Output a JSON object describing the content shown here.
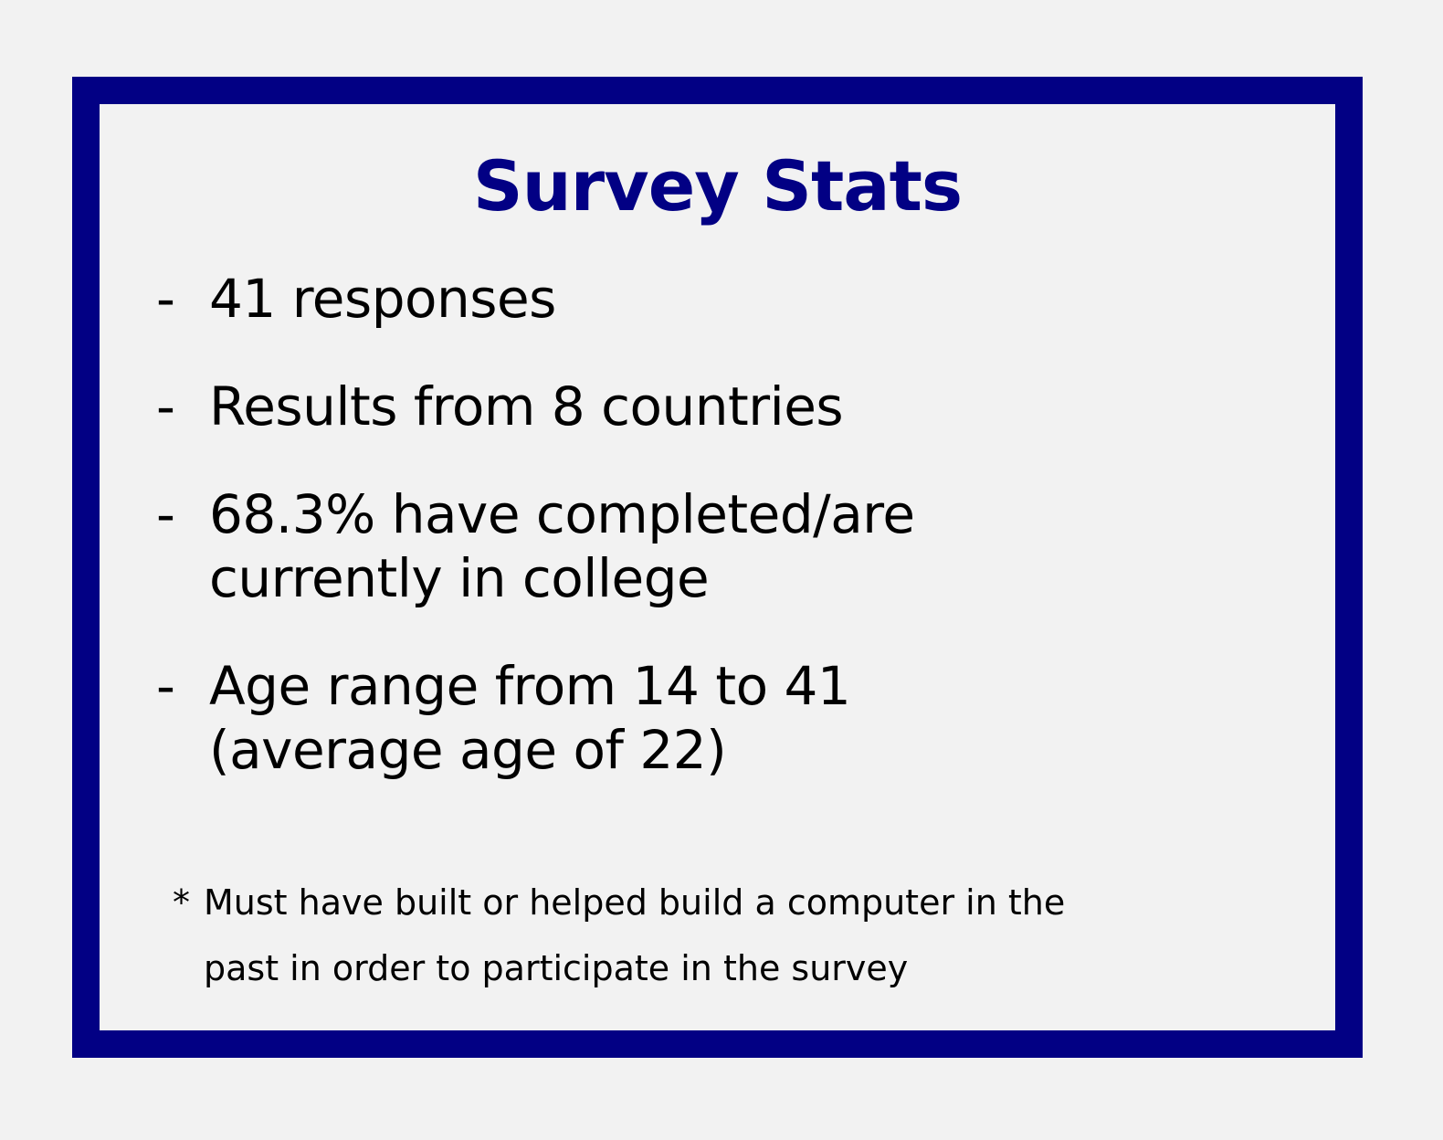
{
  "colors": {
    "background": "#f2f2f2",
    "frame_border": "#020084",
    "title": "#020084",
    "text": "#000000"
  },
  "title": "Survey Stats",
  "bullet_marker": "-",
  "bullets": [
    {
      "lines": [
        "41 responses"
      ]
    },
    {
      "lines": [
        "Results from 8 countries"
      ]
    },
    {
      "lines": [
        "68.3% have completed/are",
        "currently in college"
      ]
    },
    {
      "lines": [
        "Age range from 14 to 41",
        "(average age of 22)"
      ]
    }
  ],
  "footnote": {
    "marker": "*",
    "lines": [
      "Must have built or helped build a computer in the",
      "past in order to participate in the survey"
    ]
  }
}
